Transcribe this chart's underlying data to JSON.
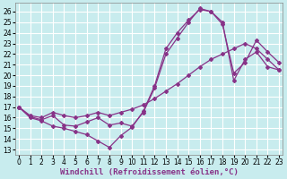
{
  "background_color": "#c8ecee",
  "grid_color": "#ffffff",
  "line_color": "#883388",
  "xlabel": "Windchill (Refroidissement éolien,°C)",
  "xlabel_fontsize": 6.5,
  "ylabel_ticks": [
    13,
    14,
    15,
    16,
    17,
    18,
    19,
    20,
    21,
    22,
    23,
    24,
    25,
    26
  ],
  "xlabel_ticks": [
    0,
    1,
    2,
    3,
    4,
    5,
    6,
    7,
    8,
    9,
    10,
    11,
    12,
    13,
    14,
    15,
    16,
    17,
    18,
    19,
    20,
    21,
    22,
    23
  ],
  "xlim": [
    -0.3,
    23.3
  ],
  "ylim": [
    12.5,
    26.8
  ],
  "line1_x": [
    0,
    1,
    2,
    3,
    4,
    5,
    6,
    7,
    8,
    9,
    10,
    11,
    12,
    13,
    14,
    15,
    16,
    17,
    18,
    19,
    20,
    21,
    22,
    23
  ],
  "line1_y": [
    17.0,
    16.0,
    15.7,
    15.2,
    15.0,
    14.7,
    14.4,
    13.8,
    13.2,
    14.3,
    15.1,
    16.6,
    19.0,
    22.5,
    24.0,
    25.2,
    26.2,
    26.0,
    25.0,
    19.5,
    21.5,
    22.2,
    20.8,
    20.5
  ],
  "line2_x": [
    0,
    1,
    2,
    3,
    4,
    5,
    6,
    7,
    8,
    9,
    10,
    11,
    12,
    13,
    14,
    15,
    16,
    17,
    18,
    19,
    20,
    21,
    22,
    23
  ],
  "line2_y": [
    17.0,
    16.1,
    15.8,
    16.2,
    15.3,
    15.2,
    15.6,
    16.0,
    15.3,
    15.5,
    15.2,
    16.5,
    18.8,
    22.0,
    23.5,
    25.0,
    26.3,
    26.0,
    24.8,
    20.2,
    21.2,
    23.3,
    22.2,
    21.2
  ],
  "line3_x": [
    0,
    1,
    2,
    3,
    4,
    5,
    6,
    7,
    8,
    9,
    10,
    11,
    12,
    13,
    14,
    15,
    16,
    17,
    18,
    19,
    20,
    21,
    22,
    23
  ],
  "line3_y": [
    17.0,
    16.2,
    16.0,
    16.5,
    16.2,
    16.0,
    16.2,
    16.5,
    16.2,
    16.5,
    16.8,
    17.2,
    17.8,
    18.5,
    19.2,
    20.0,
    20.8,
    21.5,
    22.0,
    22.5,
    23.0,
    22.5,
    21.5,
    20.5
  ],
  "tick_fontsize": 5.5,
  "marker": "D",
  "marker_size": 2.0,
  "line_width": 0.9
}
